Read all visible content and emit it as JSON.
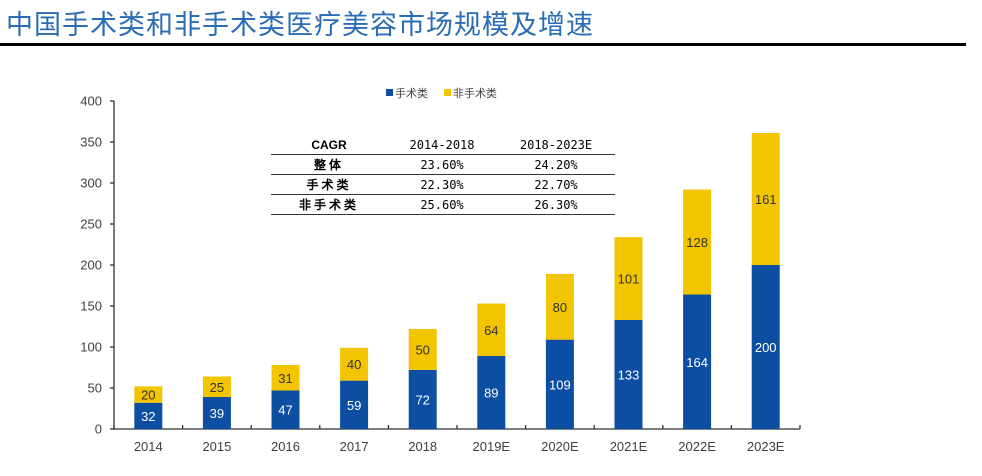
{
  "page": {
    "title": "中国手术类和非手术类医疗美容市场规模及增速"
  },
  "cagr_table": {
    "headers": [
      "CAGR",
      "2014-2018",
      "2018-2023E"
    ],
    "rows": [
      {
        "label": "整体",
        "v1": "23.60%",
        "v2": "24.20%"
      },
      {
        "label": "手术类",
        "v1": "22.30%",
        "v2": "22.70%"
      },
      {
        "label": "非手术类",
        "v1": "25.60%",
        "v2": "26.30%"
      }
    ]
  },
  "colors": {
    "surgical": "#0b4ea2",
    "non_surgical": "#f2c500",
    "axis": "#333333"
  },
  "chart_data": {
    "type": "bar",
    "stacked": true,
    "title": "中国手术类和非手术类医疗美容市场规模及增速",
    "xlabel": "",
    "ylabel": "",
    "categories": [
      "2014",
      "2015",
      "2016",
      "2017",
      "2018",
      "2019E",
      "2020E",
      "2021E",
      "2022E",
      "2023E"
    ],
    "series": [
      {
        "name": "手术类",
        "color": "#0b4ea2",
        "label_color": "#ffffff",
        "values": [
          32,
          39,
          47,
          59,
          72,
          89,
          109,
          133,
          164,
          200
        ]
      },
      {
        "name": "非手术类",
        "color": "#f2c500",
        "label_color": "#333333",
        "values": [
          20,
          25,
          31,
          40,
          50,
          64,
          80,
          101,
          128,
          161
        ]
      }
    ],
    "ylim": [
      0,
      400
    ],
    "yticks": [
      0,
      50,
      100,
      150,
      200,
      250,
      300,
      350,
      400
    ],
    "grid": false,
    "legend": "top-center"
  }
}
